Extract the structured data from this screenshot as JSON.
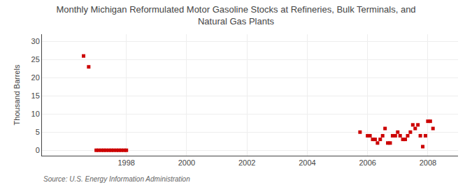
{
  "chart_data": {
    "type": "scatter",
    "title": "Monthly Michigan Reformulated Motor Gasoline Stocks at Refineries, Bulk Terminals, and\nNatural Gas Plants",
    "ylabel": "Thousand Barrels",
    "annotations": [
      "Source: U.S. Energy Information Administration"
    ],
    "color": "#cc0000",
    "marker": "square",
    "grid": true,
    "xlim": [
      1995.2,
      2009.0
    ],
    "ylim": [
      -1.5,
      32
    ],
    "xticks": [
      1998,
      2000,
      2002,
      2004,
      2006,
      2008
    ],
    "yticks": [
      0,
      5,
      10,
      15,
      20,
      25,
      30
    ],
    "x": [
      1996.58,
      1996.75,
      1997.0,
      1997.08,
      1997.17,
      1997.25,
      1997.33,
      1997.42,
      1997.5,
      1997.58,
      1997.67,
      1997.75,
      1997.83,
      1997.92,
      1998.0,
      2005.75,
      2006.0,
      2006.08,
      2006.17,
      2006.25,
      2006.33,
      2006.42,
      2006.5,
      2006.58,
      2006.67,
      2006.75,
      2006.83,
      2006.92,
      2007.0,
      2007.08,
      2007.17,
      2007.25,
      2007.33,
      2007.42,
      2007.5,
      2007.58,
      2007.67,
      2007.75,
      2007.83,
      2007.92,
      2008.0,
      2008.08,
      2008.17
    ],
    "values": [
      26,
      23,
      0,
      0,
      0,
      0,
      0,
      0,
      0,
      0,
      0,
      0,
      0,
      0,
      0,
      5,
      4,
      4,
      3,
      3,
      2,
      3,
      4,
      6,
      2,
      2,
      4,
      4,
      5,
      4,
      3,
      3,
      4,
      5,
      7,
      6,
      7,
      4,
      1,
      4,
      8,
      8,
      6
    ]
  }
}
